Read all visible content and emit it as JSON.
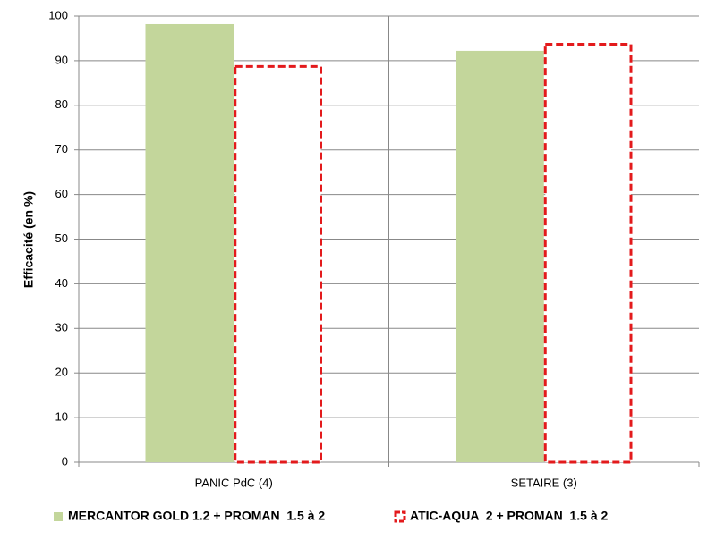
{
  "chart_data": {
    "type": "bar",
    "y_label": "Efficacité (en %)",
    "categories": [
      "PANIC PdC (4)",
      "SETAIRE (3)"
    ],
    "series": [
      {
        "name": "MERCANTOR GOLD 1.2 + PROMAN  1.5 à 2",
        "color": "#c3d69b",
        "style": "solid",
        "values": [
          98.2,
          92.2
        ]
      },
      {
        "name": "ATIC-AQUA  2 + PROMAN  1.5 à 2",
        "color": "#e31a1c",
        "style": "dashed",
        "values": [
          89,
          94
        ]
      }
    ],
    "ylim": [
      0,
      100
    ],
    "yticks": [
      0,
      10,
      20,
      30,
      40,
      50,
      60,
      70,
      80,
      90,
      100
    ],
    "grid": true
  }
}
